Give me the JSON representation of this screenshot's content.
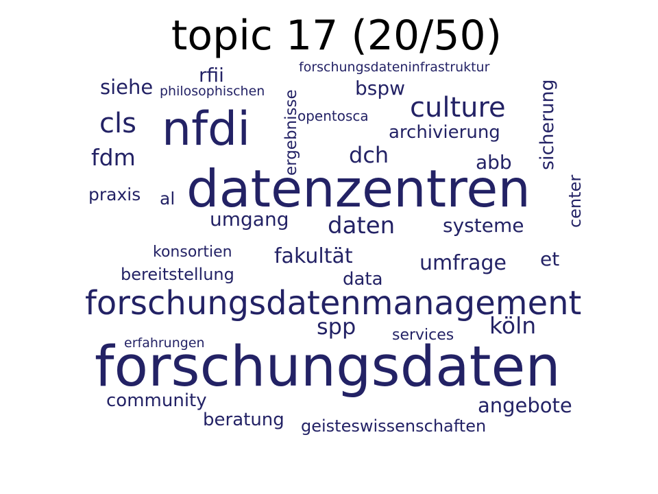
{
  "title": "topic 17 (20/50)",
  "colors": {
    "words": "#232265",
    "title": "#000000",
    "background": "#ffffff"
  },
  "words": {
    "forschungsdaten": "forschungsdaten",
    "datenzentren": "datenzentren",
    "forschungsdatenmanagement": "forschungsdatenmanagement",
    "nfdi": "nfdi",
    "culture": "culture",
    "cls": "cls",
    "daten": "daten",
    "koeln": "köln",
    "fdm": "fdm",
    "dch": "dch",
    "spp": "spp",
    "siehe": "siehe",
    "umfrage": "umfrage",
    "fakultaet": "fakultät",
    "angebote": "angebote",
    "umgang": "umgang",
    "systeme": "systeme",
    "abb": "abb",
    "rfii": "rfii",
    "bspw": "bspw",
    "et": "et",
    "archivierung": "archivierung",
    "sicherung": "sicherung",
    "data": "data",
    "beratung": "beratung",
    "community": "community",
    "praxis": "praxis",
    "al": "al",
    "ergebnisse": "ergebnisse",
    "center": "center",
    "bereitstellung": "bereitstellung",
    "geisteswissenschaften": "geisteswissenschaften",
    "konsortien": "konsortien",
    "services": "services",
    "opentosca": "opentosca",
    "philosophischen": "philosophischen",
    "forschungsdateninfrastruktur": "forschungsdateninfrastruktur",
    "erfahrungen": "erfahrungen"
  }
}
